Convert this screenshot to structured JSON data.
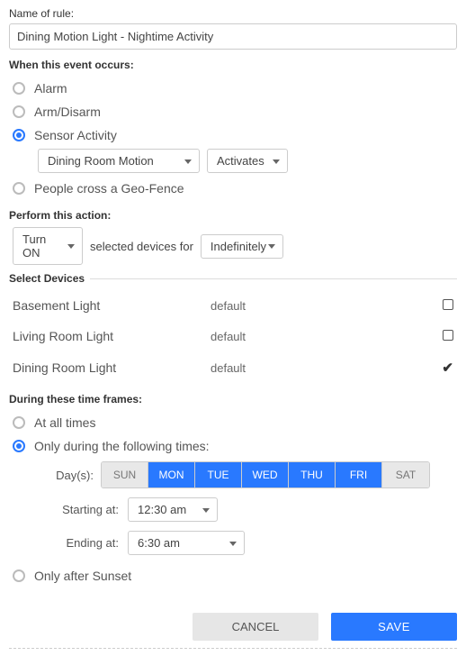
{
  "name_section": {
    "label": "Name of rule:",
    "value": "Dining Motion Light - Nightime Activity"
  },
  "event_section": {
    "label": "When this event occurs:",
    "options": {
      "alarm": "Alarm",
      "arm_disarm": "Arm/Disarm",
      "sensor_activity": "Sensor Activity",
      "geo_fence": "People cross a Geo-Fence"
    },
    "selected": "sensor_activity",
    "sensor_select": "Dining Room Motion",
    "sensor_action": "Activates"
  },
  "action_section": {
    "label": "Perform this action:",
    "turn": "Turn ON",
    "middle_text": "selected devices for",
    "duration": "Indefinitely"
  },
  "devices_section": {
    "label": "Select Devices",
    "rows": [
      {
        "name": "Basement Light",
        "state": "default",
        "checked": false
      },
      {
        "name": "Living Room Light",
        "state": "default",
        "checked": false
      },
      {
        "name": "Dining Room Light",
        "state": "default",
        "checked": true
      }
    ]
  },
  "time_section": {
    "label": "During these time frames:",
    "options": {
      "all_times": "At all times",
      "only_during": "Only during the following times:",
      "after_sunset": "Only after Sunset"
    },
    "selected": "only_during",
    "days_label": "Day(s):",
    "days": [
      {
        "abbr": "SUN",
        "on": false
      },
      {
        "abbr": "MON",
        "on": true
      },
      {
        "abbr": "TUE",
        "on": true
      },
      {
        "abbr": "WED",
        "on": true
      },
      {
        "abbr": "THU",
        "on": true
      },
      {
        "abbr": "FRI",
        "on": true
      },
      {
        "abbr": "SAT",
        "on": false
      }
    ],
    "start_label": "Starting at:",
    "start_value": "12:30 am",
    "end_label": "Ending at:",
    "end_value": "6:30 am"
  },
  "footer": {
    "cancel": "CANCEL",
    "save": "SAVE"
  },
  "colors": {
    "accent": "#2979ff",
    "border": "#cccccc",
    "muted_bg": "#e8e8e8"
  }
}
